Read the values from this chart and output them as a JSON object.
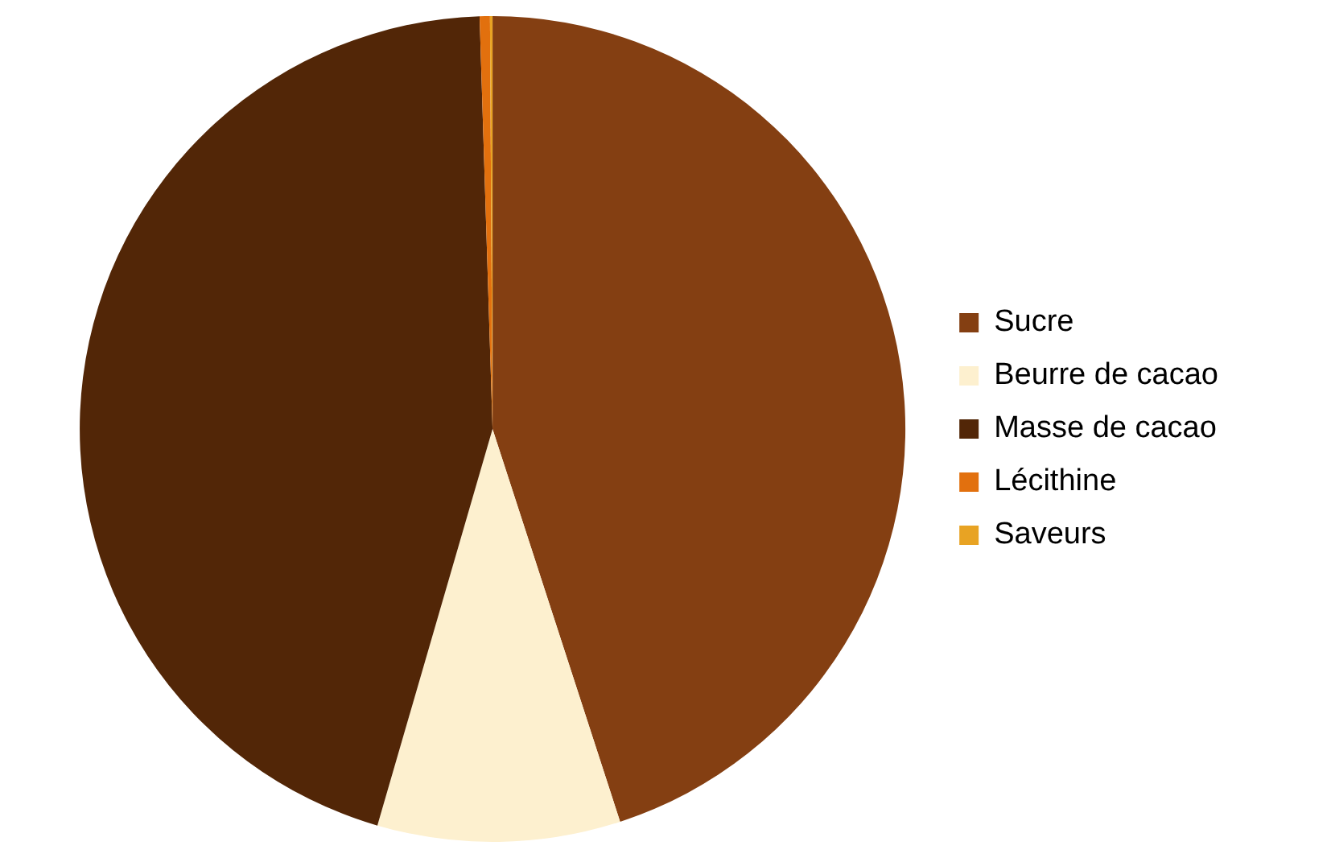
{
  "chart_data": {
    "type": "pie",
    "categories": [
      "Sucre",
      "Beurre de cacao",
      "Masse de cacao",
      "Lécithine",
      "Saveurs"
    ],
    "values": [
      45,
      9.5,
      45,
      0.4,
      0.1
    ],
    "colors": [
      "#843f12",
      "#fdf0cf",
      "#522607",
      "#e2700e",
      "#e8a323"
    ],
    "legend": "right"
  }
}
